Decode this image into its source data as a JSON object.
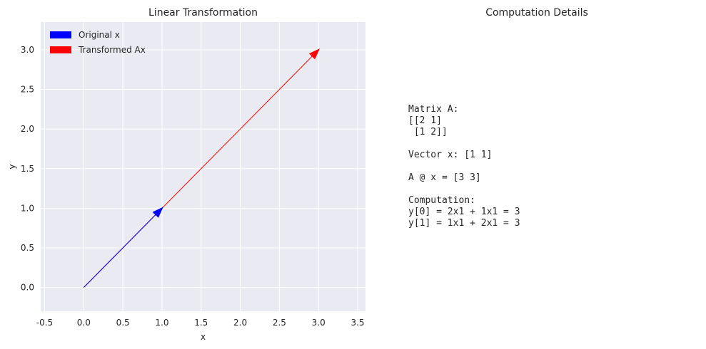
{
  "chart_data": [
    {
      "type": "vector",
      "title": "Linear Transformation",
      "xlabel": "x",
      "ylabel": "y",
      "xlim": [
        -0.55,
        3.6
      ],
      "ylim": [
        -0.3,
        3.35
      ],
      "xticks": [
        -0.5,
        0.0,
        0.5,
        1.0,
        1.5,
        2.0,
        2.5,
        3.0,
        3.5
      ],
      "xtick_labels": [
        "-0.5",
        "0.0",
        "0.5",
        "1.0",
        "1.5",
        "2.0",
        "2.5",
        "3.0",
        "3.5"
      ],
      "yticks": [
        0.0,
        0.5,
        1.0,
        1.5,
        2.0,
        2.5,
        3.0
      ],
      "ytick_labels": [
        "0.0",
        "0.5",
        "1.0",
        "1.5",
        "2.0",
        "2.5",
        "3.0"
      ],
      "grid": true,
      "legend_position": "top-left",
      "series": [
        {
          "name": "Original x",
          "start": [
            0,
            0
          ],
          "end": [
            1,
            1
          ],
          "color": "#0000ff"
        },
        {
          "name": "Transformed Ax",
          "start": [
            0,
            0
          ],
          "end": [
            3,
            3
          ],
          "color": "#ff0000"
        }
      ]
    },
    {
      "type": "text",
      "title": "Computation Details",
      "lines": [
        "Matrix A:",
        "[[2 1]",
        " [1 2]]",
        "",
        "Vector x: [1 1]",
        "",
        "A @ x = [3 3]",
        "",
        "Computation:",
        "y[0] = 2x1 + 1x1 = 3",
        "y[1] = 1x1 + 2x1 = 3"
      ]
    }
  ],
  "colors": {
    "plot_background": "#eaeaf2",
    "grid": "#ffffff",
    "text": "#262626"
  }
}
